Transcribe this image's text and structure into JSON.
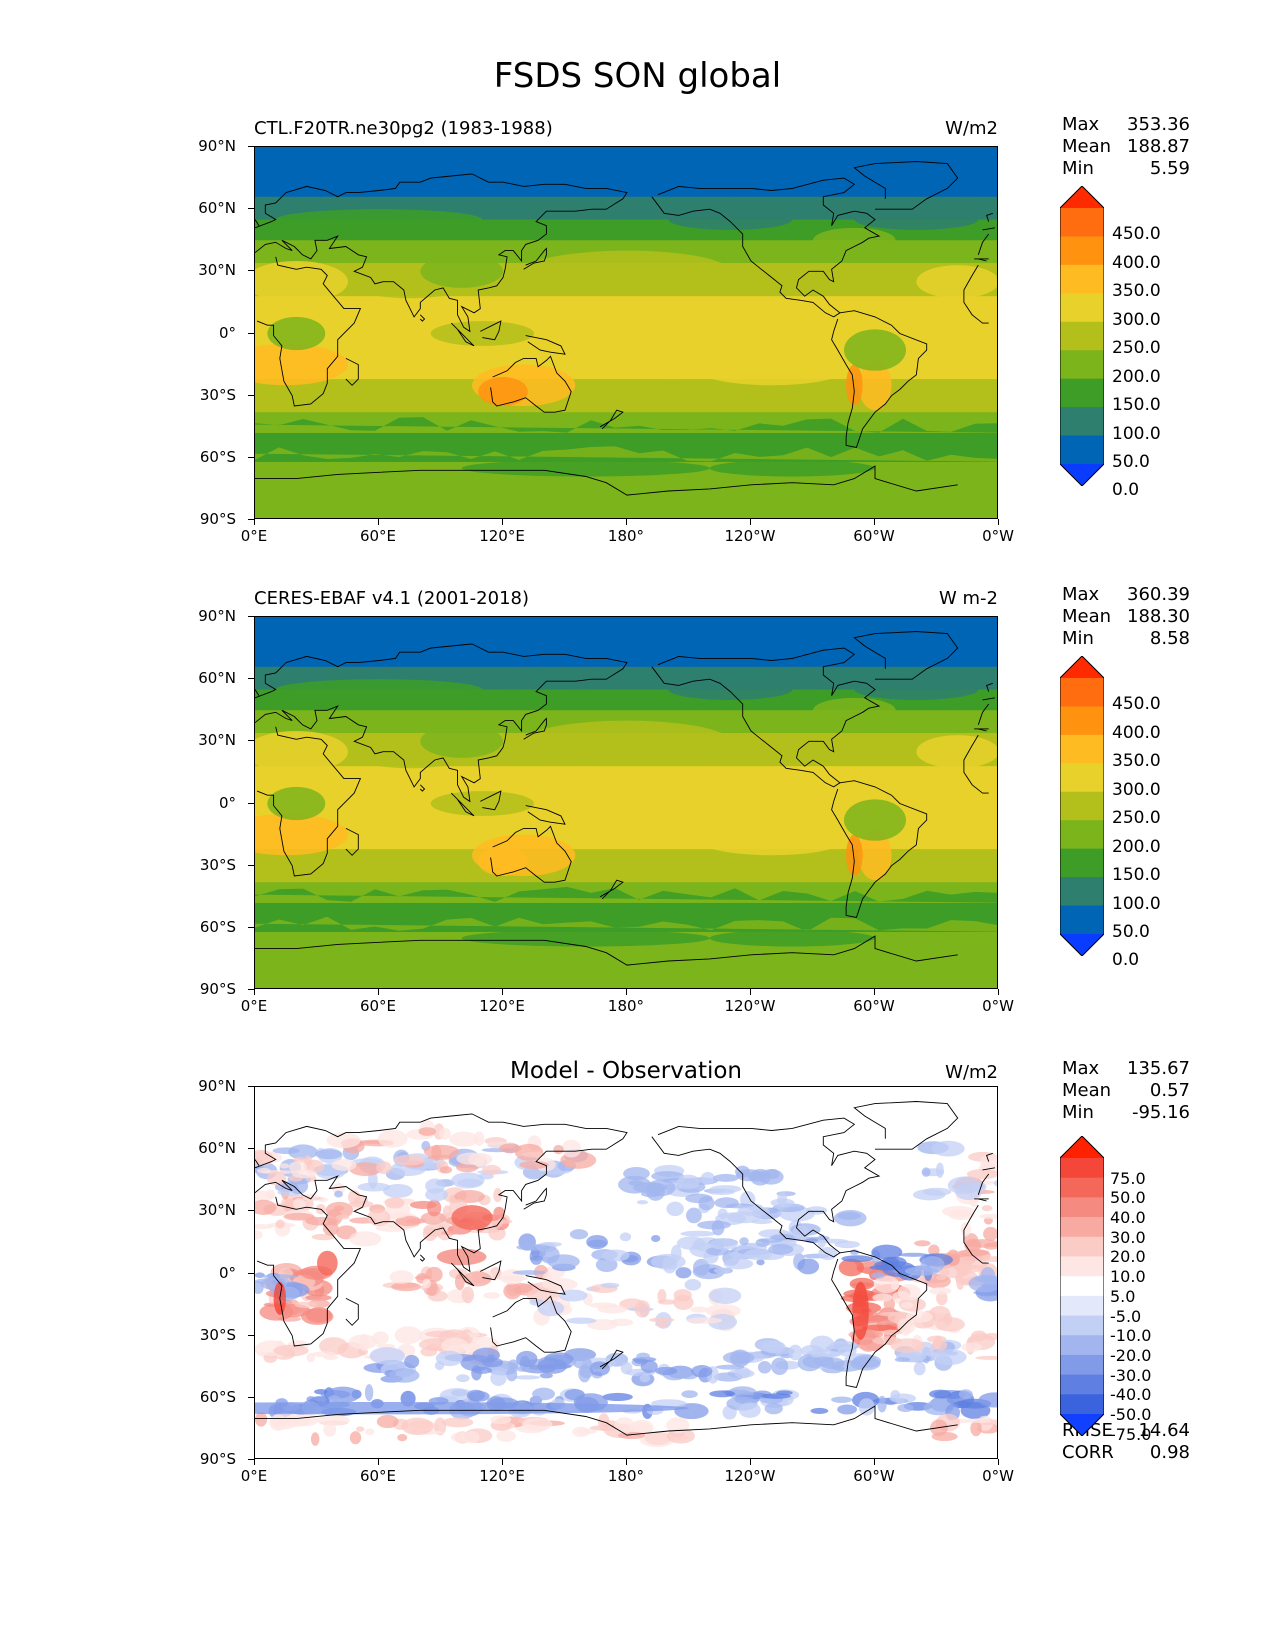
{
  "figure": {
    "title": "FSDS SON global"
  },
  "latitude_ticks": [
    "90°N",
    "60°N",
    "30°N",
    "0°",
    "30°S",
    "60°S",
    "90°S"
  ],
  "longitude_ticks": [
    "0°E",
    "60°E",
    "120°E",
    "180°",
    "120°W",
    "60°W",
    "0°W"
  ],
  "panels": [
    {
      "left_title": "CTL.F20TR.ne30pg2 (1983-1988)",
      "center_title": "",
      "units": "W/m2",
      "stats": [
        {
          "label": "Max",
          "value": "353.36"
        },
        {
          "label": "Mean",
          "value": "188.87"
        },
        {
          "label": "Min",
          "value": "5.59"
        }
      ],
      "colorbar": {
        "labels": [
          "450.0",
          "400.0",
          "350.0",
          "300.0",
          "250.0",
          "200.0",
          "150.0",
          "100.0",
          "50.0",
          "0.0"
        ],
        "colors": [
          "#ff2a00",
          "#ff6d10",
          "#ff9310",
          "#ffbb22",
          "#e8d12a",
          "#b3c01b",
          "#7cb41c",
          "#3d9d27",
          "#2e7f6e",
          "#0065b4",
          "#0a3cff"
        ]
      }
    },
    {
      "left_title": "CERES-EBAF v4.1 (2001-2018)",
      "center_title": "",
      "units": "W m-2",
      "stats": [
        {
          "label": "Max",
          "value": "360.39"
        },
        {
          "label": "Mean",
          "value": "188.30"
        },
        {
          "label": "Min",
          "value": "8.58"
        }
      ],
      "colorbar": {
        "labels": [
          "450.0",
          "400.0",
          "350.0",
          "300.0",
          "250.0",
          "200.0",
          "150.0",
          "100.0",
          "50.0",
          "0.0"
        ],
        "colors": [
          "#ff2a00",
          "#ff6d10",
          "#ff9310",
          "#ffbb22",
          "#e8d12a",
          "#b3c01b",
          "#7cb41c",
          "#3d9d27",
          "#2e7f6e",
          "#0065b4",
          "#0a3cff"
        ]
      }
    },
    {
      "left_title": "",
      "center_title": "Model - Observation",
      "units": "W/m2",
      "stats": [
        {
          "label": "Max",
          "value": "135.67"
        },
        {
          "label": "Mean",
          "value": "0.57"
        },
        {
          "label": "Min",
          "value": "-95.16"
        }
      ],
      "colorbar": {
        "labels": [
          "75.0",
          "50.0",
          "40.0",
          "30.0",
          "20.0",
          "10.0",
          "5.0",
          "-5.0",
          "-10.0",
          "-20.0",
          "-30.0",
          "-40.0",
          "-50.0",
          "-75.0"
        ],
        "colors": [
          "#ff2200",
          "#f4473a",
          "#f4685a",
          "#f48a80",
          "#f7aaa2",
          "#fbcbc6",
          "#fde6e3",
          "#ffffff",
          "#e3e9fb",
          "#c3d0f5",
          "#a2b5ef",
          "#819be8",
          "#5f80e2",
          "#3a63dd",
          "#1240ff"
        ]
      },
      "error_stats": [
        {
          "label": "RMSE",
          "value": "14.64"
        },
        {
          "label": "CORR",
          "value": "0.98"
        }
      ]
    }
  ]
}
